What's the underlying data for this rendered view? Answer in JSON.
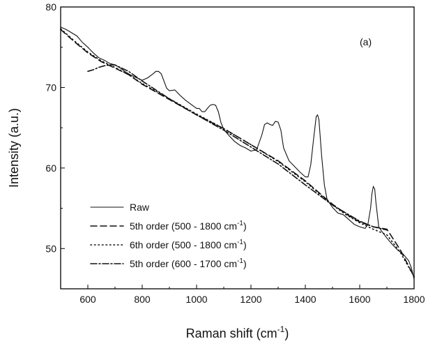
{
  "chart_data": {
    "type": "line",
    "title": "",
    "panel_label": "(a)",
    "xlabel_main": "Raman shift (cm",
    "xlabel_sup": "-1",
    "xlabel_end": ")",
    "ylabel": "Intensity (a.u.)",
    "xlim": [
      500,
      1800
    ],
    "ylim": [
      45,
      80
    ],
    "x_ticks": [
      600,
      800,
      1000,
      1200,
      1400,
      1600,
      1800
    ],
    "y_ticks": [
      50,
      60,
      70,
      80
    ],
    "grid": false,
    "legend_position": "bottom-left",
    "series": [
      {
        "name": "Raw",
        "style": "solid",
        "x": [
          500,
          520,
          540,
          560,
          580,
          600,
          620,
          640,
          660,
          680,
          700,
          720,
          740,
          760,
          780,
          800,
          820,
          840,
          850,
          860,
          870,
          880,
          890,
          900,
          920,
          940,
          960,
          980,
          1000,
          1010,
          1020,
          1030,
          1040,
          1050,
          1060,
          1070,
          1080,
          1090,
          1100,
          1120,
          1140,
          1160,
          1180,
          1200,
          1210,
          1220,
          1240,
          1250,
          1260,
          1270,
          1280,
          1290,
          1300,
          1310,
          1320,
          1340,
          1360,
          1380,
          1400,
          1410,
          1420,
          1430,
          1440,
          1445,
          1450,
          1460,
          1470,
          1480,
          1500,
          1520,
          1540,
          1560,
          1580,
          1600,
          1620,
          1630,
          1640,
          1645,
          1650,
          1655,
          1660,
          1670,
          1680,
          1700,
          1720,
          1740,
          1760,
          1780,
          1790,
          1800
        ],
        "y": [
          77.5,
          77.2,
          76.8,
          76.4,
          75.6,
          75.0,
          74.3,
          73.7,
          73.4,
          73.0,
          72.8,
          72.4,
          71.9,
          71.5,
          71.2,
          70.9,
          71.2,
          71.7,
          72.0,
          72.0,
          71.7,
          70.8,
          69.9,
          69.6,
          69.7,
          69.0,
          68.4,
          67.9,
          67.4,
          67.4,
          67.0,
          67.0,
          67.4,
          67.8,
          67.9,
          67.8,
          67.0,
          65.6,
          64.8,
          64.0,
          63.3,
          62.8,
          62.5,
          62.1,
          62.2,
          62.2,
          64.1,
          65.4,
          65.6,
          65.4,
          65.3,
          65.8,
          65.7,
          64.7,
          62.5,
          60.9,
          60.2,
          59.5,
          58.9,
          58.9,
          60.4,
          63.5,
          66.4,
          66.6,
          66.0,
          61.5,
          57.9,
          56.1,
          55.1,
          54.4,
          54.2,
          53.6,
          53.0,
          52.7,
          52.5,
          53.0,
          55.0,
          56.8,
          57.7,
          57.4,
          55.6,
          52.7,
          52.2,
          51.3,
          50.5,
          49.8,
          49.3,
          48.5,
          47.6,
          46.2
        ]
      },
      {
        "name": "5th order (500 - 1800 cm",
        "name_sup": "-1",
        "name_end": ")",
        "style": "dash",
        "x": [
          500,
          550,
          600,
          650,
          700,
          750,
          800,
          900,
          1000,
          1100,
          1200,
          1300,
          1400,
          1500,
          1550,
          1600,
          1650,
          1700,
          1750,
          1800
        ],
        "y": [
          77.2,
          75.7,
          74.3,
          73.2,
          72.4,
          71.6,
          70.4,
          68.5,
          66.6,
          64.9,
          62.9,
          60.9,
          58.4,
          55.5,
          54.3,
          53.3,
          52.7,
          52.4,
          49.8,
          46.5
        ]
      },
      {
        "name": "6th order (500 - 1800 cm",
        "name_sup": "-1",
        "name_end": ")",
        "style": "dot",
        "x": [
          500,
          550,
          600,
          650,
          700,
          750,
          800,
          900,
          1000,
          1100,
          1200,
          1300,
          1400,
          1500,
          1550,
          1600,
          1650,
          1700,
          1750,
          1800
        ],
        "y": [
          77.3,
          75.8,
          74.4,
          73.3,
          72.5,
          71.6,
          70.5,
          68.6,
          66.7,
          64.9,
          62.9,
          60.8,
          58.3,
          55.4,
          54.2,
          53.2,
          52.4,
          51.7,
          49.5,
          46.5
        ]
      },
      {
        "name": "5th order (600 - 1700 cm",
        "name_sup": "-1",
        "name_end": ")",
        "style": "dashdot",
        "x": [
          600,
          620,
          640,
          660,
          680,
          700,
          750,
          800,
          900,
          1000,
          1100,
          1200,
          1300,
          1400,
          1500,
          1600,
          1650,
          1700
        ],
        "y": [
          72.0,
          72.2,
          72.5,
          72.7,
          72.8,
          72.8,
          72.0,
          70.8,
          68.6,
          66.6,
          64.7,
          62.6,
          60.5,
          57.9,
          55.4,
          53.4,
          52.7,
          52.3
        ]
      }
    ]
  }
}
